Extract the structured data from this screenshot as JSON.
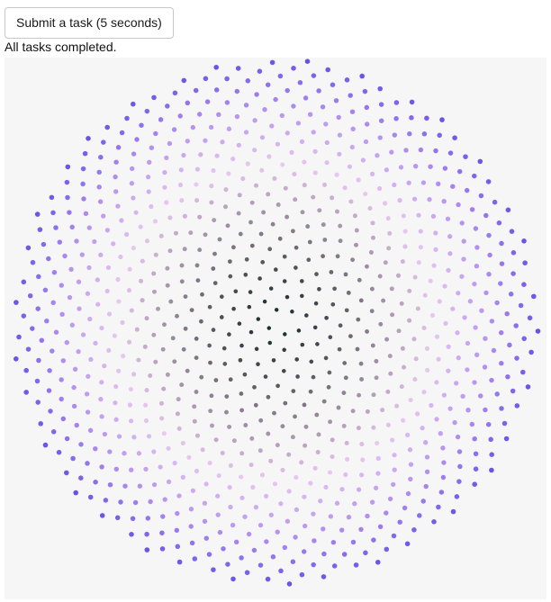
{
  "controls": {
    "submit_label": "Submit a task (5 seconds)"
  },
  "status": {
    "message": "All tasks completed."
  },
  "visualization": {
    "colors": {
      "background": "#f6f6f6",
      "palette_stops": [
        "#0f2a2a",
        "#4a4a52",
        "#9a8a9e",
        "#e9c8f0",
        "#b894f0",
        "#6a52e8"
      ]
    }
  }
}
